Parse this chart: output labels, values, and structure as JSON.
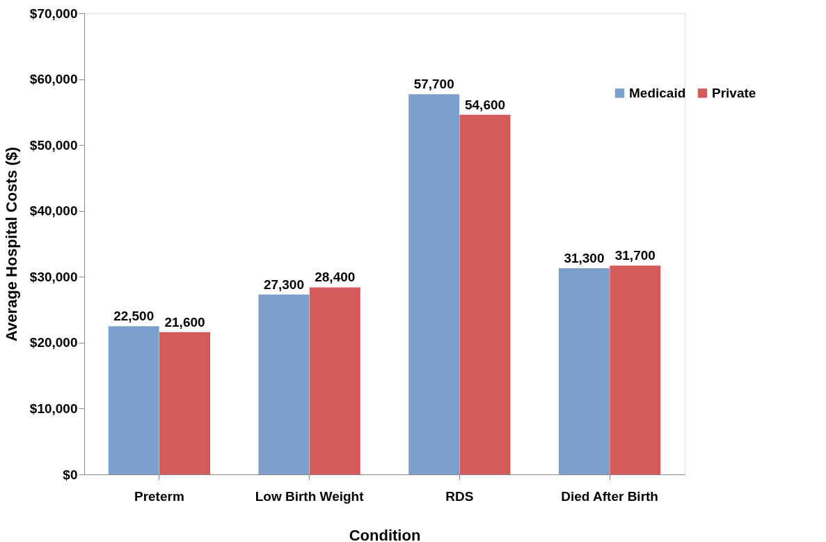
{
  "chart_data": {
    "type": "bar",
    "xlabel": "Condition",
    "ylabel": "Average Hospital Costs ($)",
    "categories": [
      "Preterm",
      "Low Birth Weight",
      "RDS",
      "Died After Birth"
    ],
    "series": [
      {
        "name": "Medicaid",
        "color": "#7ba0cd",
        "values": [
          22500,
          27300,
          57700,
          31300
        ],
        "value_labels": [
          "22,500",
          "27,300",
          "57,700",
          "31,300"
        ]
      },
      {
        "name": "Private",
        "color": "#d55b5a",
        "values": [
          21600,
          28400,
          54600,
          31700
        ],
        "value_labels": [
          "21,600",
          "28,400",
          "54,600",
          "31,700"
        ]
      }
    ],
    "ylim": [
      0,
      70000
    ],
    "yticks": [
      {
        "value": 0,
        "label": "$0"
      },
      {
        "value": 10000,
        "label": "$10,000"
      },
      {
        "value": 20000,
        "label": "$20,000"
      },
      {
        "value": 30000,
        "label": "$30,000"
      },
      {
        "value": 40000,
        "label": "$40,000"
      },
      {
        "value": 50000,
        "label": "$50,000"
      },
      {
        "value": 60000,
        "label": "$60,000"
      },
      {
        "value": 70000,
        "label": "$70,000"
      }
    ],
    "grid": false,
    "legend": "top right"
  }
}
